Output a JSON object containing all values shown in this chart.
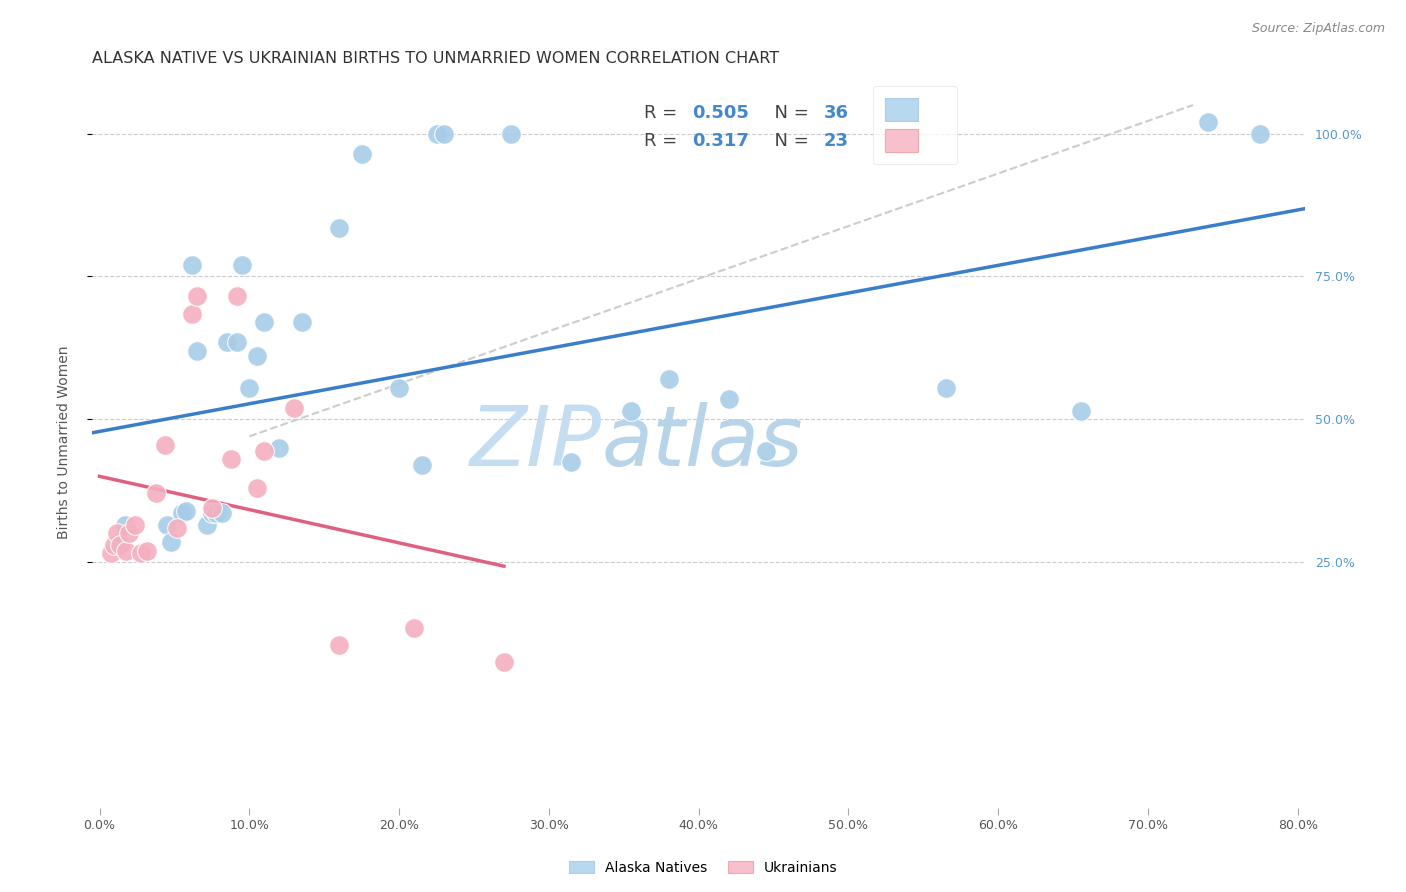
{
  "title": "ALASKA NATIVE VS UKRAINIAN BIRTHS TO UNMARRIED WOMEN CORRELATION CHART",
  "source": "Source: ZipAtlas.com",
  "ylabel": "Births to Unmarried Women",
  "alaska_r": "0.505",
  "alaska_n": "36",
  "ukrainian_r": "0.317",
  "ukrainian_n": "23",
  "alaska_color": "#a8cce8",
  "ukrainian_color": "#f4b0c0",
  "alaska_line_color": "#3a7dc9",
  "ukrainian_line_color": "#e06080",
  "diagonal_line_color": "#cccccc",
  "legend_alaska_fill": "#b8d8f0",
  "legend_ukrainian_fill": "#f8c0cc",
  "watermark_color": "#ddeeff",
  "background_color": "#ffffff",
  "grid_color": "#cccccc",
  "x_min": -0.005,
  "x_max": 0.805,
  "y_min": -0.18,
  "y_max": 1.1,
  "alaska_x": [
    0.013,
    0.017,
    0.045,
    0.048,
    0.055,
    0.058,
    0.062,
    0.065,
    0.072,
    0.075,
    0.078,
    0.082,
    0.085,
    0.092,
    0.095,
    0.1,
    0.105,
    0.11,
    0.12,
    0.135,
    0.16,
    0.175,
    0.2,
    0.215,
    0.225,
    0.23,
    0.275,
    0.315,
    0.355,
    0.38,
    0.42,
    0.445,
    0.565,
    0.655,
    0.74,
    0.775
  ],
  "alaska_y": [
    0.285,
    0.315,
    0.315,
    0.285,
    0.335,
    0.34,
    0.77,
    0.62,
    0.315,
    0.335,
    0.335,
    0.335,
    0.635,
    0.635,
    0.77,
    0.555,
    0.61,
    0.67,
    0.45,
    0.67,
    0.835,
    0.965,
    0.555,
    0.42,
    1.0,
    1.0,
    1.0,
    0.425,
    0.515,
    0.57,
    0.535,
    0.445,
    0.555,
    0.515,
    1.02,
    1.0
  ],
  "ukrainian_x": [
    0.008,
    0.01,
    0.012,
    0.014,
    0.018,
    0.02,
    0.024,
    0.028,
    0.032,
    0.038,
    0.044,
    0.052,
    0.062,
    0.065,
    0.075,
    0.088,
    0.092,
    0.105,
    0.11,
    0.13,
    0.16,
    0.21,
    0.27
  ],
  "ukrainian_y": [
    0.265,
    0.28,
    0.3,
    0.28,
    0.27,
    0.3,
    0.315,
    0.265,
    0.27,
    0.37,
    0.455,
    0.31,
    0.685,
    0.715,
    0.345,
    0.43,
    0.715,
    0.38,
    0.445,
    0.52,
    0.105,
    0.135,
    0.075
  ],
  "title_fontsize": 11.5,
  "axis_label_fontsize": 10,
  "tick_fontsize": 9,
  "legend_fontsize": 13,
  "watermark_fontsize": 60,
  "source_fontsize": 9
}
